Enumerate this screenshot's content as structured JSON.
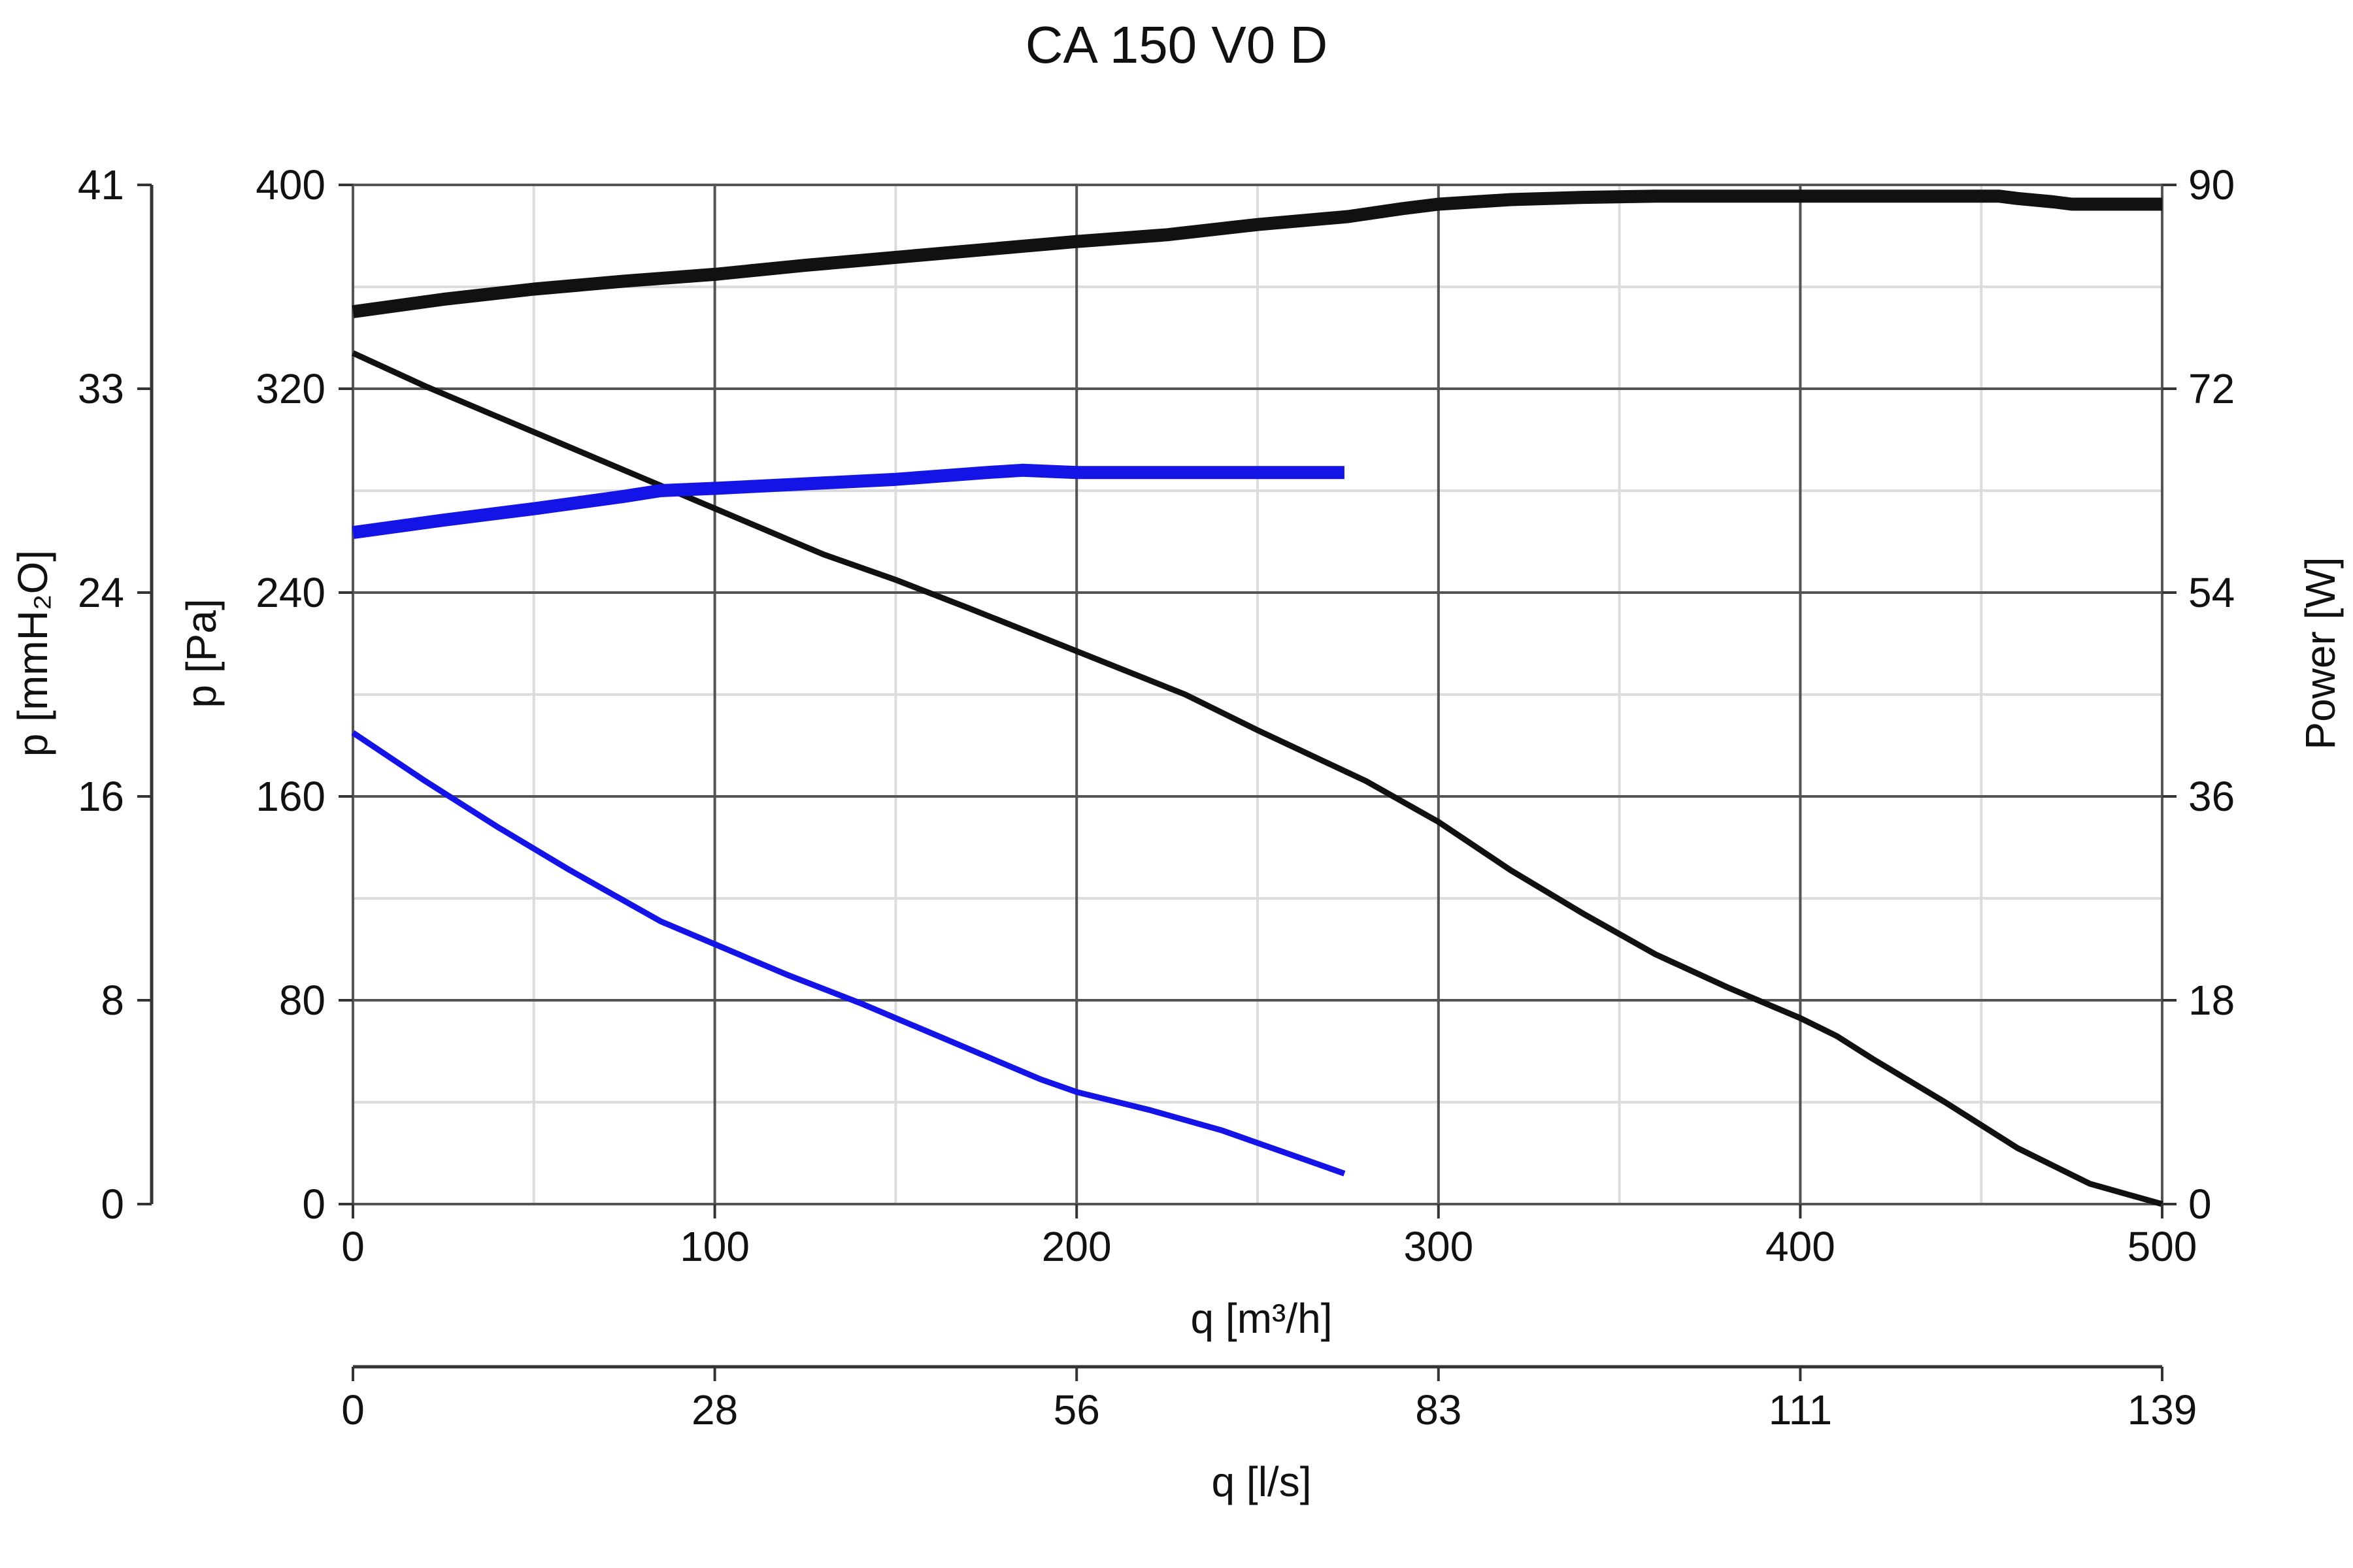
{
  "chart_data": {
    "type": "line",
    "title": "CA 150 V0 D",
    "x_axis": {
      "label": "q [m³/h]",
      "range": [
        0,
        500
      ],
      "ticks": [
        "0",
        "100",
        "200",
        "300",
        "400",
        "500"
      ]
    },
    "x2_axis": {
      "label": "q [l/s]",
      "range": [
        0,
        139
      ],
      "ticks": [
        "0",
        "28",
        "56",
        "83",
        "111",
        "139"
      ]
    },
    "y_axis_left": {
      "label": "p [Pa]",
      "range": [
        0,
        400
      ],
      "ticks": [
        "0",
        "80",
        "160",
        "240",
        "320",
        "400"
      ]
    },
    "y_axis_left_outer": {
      "label": "p [mmH₂O]",
      "range": [
        0,
        41
      ],
      "ticks": [
        "0",
        "8",
        "16",
        "24",
        "33",
        "41"
      ]
    },
    "y_axis_right": {
      "label": "Power [W]",
      "range": [
        0,
        90
      ],
      "ticks": [
        "0",
        "18",
        "36",
        "54",
        "72",
        "90"
      ]
    },
    "grid": true,
    "legend": "none",
    "series": [
      {
        "axis": "pressure",
        "color": "#111111",
        "weight": "thin",
        "points": [
          [
            0,
            334
          ],
          [
            20,
            321
          ],
          [
            40,
            309
          ],
          [
            60,
            297
          ],
          [
            80,
            285
          ],
          [
            100,
            273
          ],
          [
            120,
            261
          ],
          [
            130,
            255
          ],
          [
            150,
            245
          ],
          [
            170,
            234
          ],
          [
            200,
            217
          ],
          [
            230,
            200
          ],
          [
            250,
            186
          ],
          [
            280,
            166
          ],
          [
            300,
            150
          ],
          [
            320,
            131
          ],
          [
            340,
            114
          ],
          [
            360,
            98
          ],
          [
            380,
            85
          ],
          [
            400,
            73
          ],
          [
            410,
            66
          ],
          [
            420,
            57
          ],
          [
            440,
            40
          ],
          [
            460,
            22
          ],
          [
            470,
            15
          ],
          [
            480,
            8
          ],
          [
            490,
            4
          ],
          [
            500,
            0
          ]
        ]
      },
      {
        "axis": "pressure",
        "color": "#1414e6",
        "weight": "thin",
        "points": [
          [
            0,
            185
          ],
          [
            20,
            166
          ],
          [
            40,
            148
          ],
          [
            60,
            131
          ],
          [
            70,
            123
          ],
          [
            85,
            111
          ],
          [
            100,
            102
          ],
          [
            120,
            90
          ],
          [
            140,
            79
          ],
          [
            150,
            73
          ],
          [
            160,
            67
          ],
          [
            180,
            55
          ],
          [
            190,
            49
          ],
          [
            200,
            44
          ],
          [
            220,
            37
          ],
          [
            240,
            29
          ],
          [
            260,
            19
          ],
          [
            274,
            12
          ]
        ]
      },
      {
        "axis": "power",
        "color": "#111111",
        "weight": "thick",
        "points": [
          [
            0,
            78.8
          ],
          [
            25,
            79.9
          ],
          [
            50,
            80.8
          ],
          [
            75,
            81.5
          ],
          [
            100,
            82.1
          ],
          [
            125,
            82.9
          ],
          [
            150,
            83.6
          ],
          [
            175,
            84.3
          ],
          [
            200,
            85.0
          ],
          [
            225,
            85.6
          ],
          [
            250,
            86.5
          ],
          [
            275,
            87.2
          ],
          [
            290,
            87.9
          ],
          [
            300,
            88.3
          ],
          [
            320,
            88.7
          ],
          [
            340,
            88.9
          ],
          [
            360,
            89.0
          ],
          [
            400,
            89.0
          ],
          [
            440,
            89.0
          ],
          [
            455,
            89.0
          ],
          [
            460,
            88.8
          ],
          [
            470,
            88.5
          ],
          [
            475,
            88.3
          ],
          [
            500,
            88.3
          ]
        ]
      },
      {
        "axis": "power",
        "color": "#1414e6",
        "weight": "thick",
        "points": [
          [
            0,
            59.3
          ],
          [
            25,
            60.4
          ],
          [
            50,
            61.4
          ],
          [
            75,
            62.5
          ],
          [
            85,
            63.0
          ],
          [
            100,
            63.2
          ],
          [
            125,
            63.6
          ],
          [
            150,
            64.0
          ],
          [
            175,
            64.6
          ],
          [
            185,
            64.8
          ],
          [
            200,
            64.6
          ],
          [
            240,
            64.6
          ],
          [
            274,
            64.6
          ]
        ]
      }
    ]
  }
}
